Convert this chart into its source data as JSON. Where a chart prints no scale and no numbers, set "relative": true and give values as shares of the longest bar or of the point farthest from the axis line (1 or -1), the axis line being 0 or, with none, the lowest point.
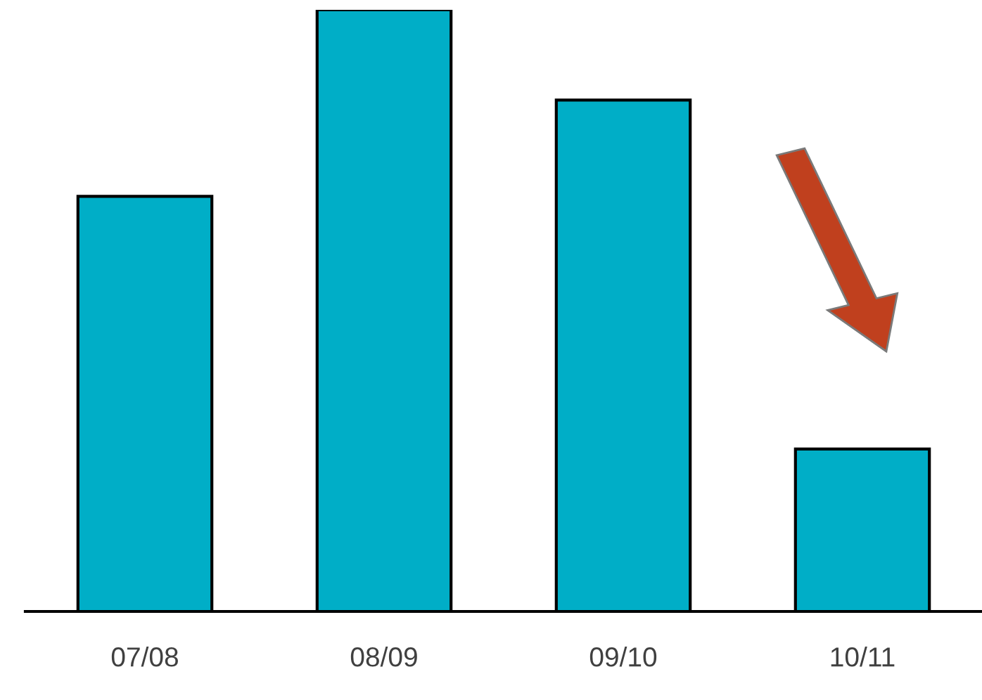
{
  "chart_data": {
    "type": "bar",
    "relative": true,
    "categories": [
      "07/08",
      "08/09",
      "09/10",
      "10/11"
    ],
    "values": [
      0.69,
      1,
      0.85,
      0.27
    ],
    "color": "#00aec7",
    "grid": false,
    "legend": false
  }
}
